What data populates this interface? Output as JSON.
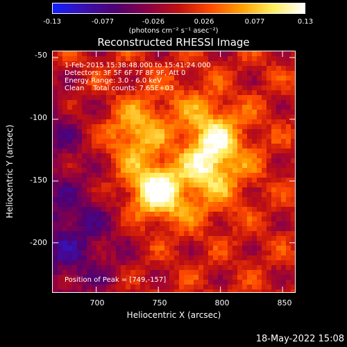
{
  "colorbar": {
    "ticks": [
      "-0.13",
      "-0.077",
      "-0.026",
      "0.026",
      "0.077",
      "0.13"
    ],
    "units": "(photons cm⁻² s⁻¹ asec⁻²)",
    "colormap": [
      "#1020ff",
      "#3a10b0",
      "#500070",
      "#8a0048",
      "#c01010",
      "#ff4a00",
      "#ffa000",
      "#ffee60",
      "#ffffff"
    ]
  },
  "title": "Reconstructed RHESSI Image",
  "info": {
    "time_range": "1-Feb-2015 15:38:48.000 to 15:41:24.000",
    "detectors": "Detectors: 3F 5F 6F 7F 8F 9F, Att 0",
    "energy": "Energy Range: 3.0 - 6.0 keV",
    "clean": "Clean    Total counts: 7.65E+03"
  },
  "peak_label": "Position of Peak = [749,-157]",
  "axes": {
    "xlabel": "Heliocentric X (arcsec)",
    "ylabel": "Heliocentric Y (arcsec)",
    "xticks": [
      "700",
      "750",
      "800",
      "850"
    ],
    "yticks": [
      "-50",
      "-100",
      "-150",
      "-200"
    ],
    "xlim": [
      665,
      860
    ],
    "ylim": [
      -240,
      -45
    ]
  },
  "chart_data": {
    "type": "heatmap",
    "title": "Reconstructed RHESSI Image",
    "xlabel": "Heliocentric X (arcsec)",
    "ylabel": "Heliocentric Y (arcsec)",
    "xlim": [
      665,
      860
    ],
    "ylim": [
      -240,
      -45
    ],
    "colorbar_range": [
      -0.13,
      0.13
    ],
    "sources": [
      {
        "x": 749,
        "y": -157,
        "relative_intensity": 1.0
      },
      {
        "x": 788,
        "y": -138,
        "relative_intensity": 0.75
      },
      {
        "x": 792,
        "y": -115,
        "relative_intensity": 0.6
      },
      {
        "x": 730,
        "y": -110,
        "relative_intensity": 0.45
      }
    ]
  },
  "timestamp": "18-May-2022 15:08"
}
